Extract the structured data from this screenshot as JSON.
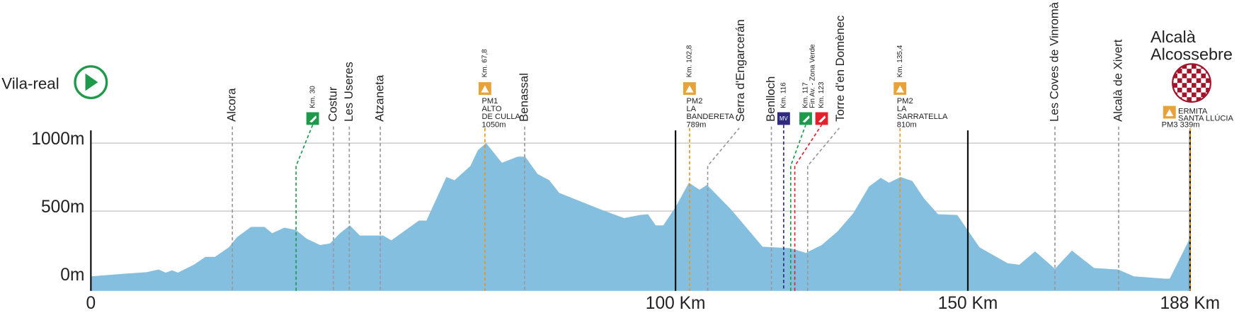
{
  "chart_data": {
    "type": "area",
    "color": "#85bfe0",
    "x": [
      0,
      6,
      9.5,
      11.6,
      12.8,
      13.9,
      14.9,
      17.6,
      19.6,
      21.2,
      23.6,
      25,
      27.4,
      29.7,
      31,
      33.1,
      35.1,
      36.9,
      39.2,
      40.9,
      42.6,
      44.3,
      46,
      50,
      51.4,
      56.1,
      57.4,
      60.8,
      62.2,
      64.9,
      66.2,
      67.6,
      70.3,
      73,
      74.3,
      76.4,
      78.4,
      80.1,
      87.2,
      91.2,
      93.9,
      95.3,
      96.6,
      97.9,
      100,
      102.3,
      104.1,
      105.4,
      109.5,
      114.9,
      119.6,
      122.3,
      125,
      127.7,
      130.4,
      133.1,
      135.1,
      136.5,
      138.5,
      140.5,
      142.5,
      144.9,
      148.2,
      152,
      156.8,
      158.8,
      161.5,
      164.9,
      167.8,
      171.6,
      175.7,
      178.4,
      184.5,
      188
    ],
    "values": [
      20,
      40,
      50,
      70,
      47,
      64,
      47,
      105,
      163,
      163,
      233,
      308,
      384,
      384,
      337,
      378,
      360,
      297,
      250,
      262,
      337,
      395,
      320,
      320,
      285,
      430,
      430,
      750,
      727,
      831,
      948,
      1000,
      855,
      900,
      900,
      773,
      727,
      634,
      512,
      448,
      471,
      477,
      395,
      395,
      529,
      709,
      657,
      692,
      512,
      238,
      227,
      192,
      250,
      349,
      483,
      680,
      744,
      709,
      750,
      721,
      593,
      477,
      471,
      233,
      116,
      105,
      203,
      76,
      209,
      81,
      70,
      20,
      0,
      300
    ],
    "xlim": [
      0,
      188
    ],
    "xticks": [
      {
        "value": 0,
        "label": "0"
      },
      {
        "value": 100,
        "label": "100 Km"
      },
      {
        "value": 150,
        "label": "150 Km"
      },
      {
        "value": 188,
        "label": "188 Km"
      }
    ],
    "ylim": [
      -87,
      1093
    ],
    "yticks": [
      {
        "value": 0,
        "label": "0m"
      },
      {
        "value": 500,
        "label": "500m"
      },
      {
        "value": 1000,
        "label": "1000m"
      }
    ],
    "grid": true,
    "start": "Vila-real",
    "finish": [
      "Alcalà",
      "Alcossebre"
    ],
    "waypoints": [
      {
        "km": 24.2,
        "kind": "place",
        "label": "Alcora"
      },
      {
        "km": 35.1,
        "kind": "sprint",
        "color": "#1e9a4b",
        "km_label": "Km. 30"
      },
      {
        "km": 41.5,
        "kind": "place",
        "label": "Costur"
      },
      {
        "km": 44.2,
        "kind": "place",
        "label": "Les Useres"
      },
      {
        "km": 49.5,
        "kind": "place",
        "label": "Atzaneta"
      },
      {
        "km": 67.4,
        "kind": "climb",
        "km_label": "Km. 67,8",
        "lines": [
          "PM1",
          "ALTO",
          "DE CULLA",
          "1050m"
        ]
      },
      {
        "km": 74.2,
        "kind": "place",
        "label": "Benassal"
      },
      {
        "km": 102.4,
        "kind": "climb",
        "km_label": "Km. 102,8",
        "lines": [
          "PM2",
          "LA",
          "BANDERETA",
          "789m"
        ]
      },
      {
        "km": 105.5,
        "kind": "offset-place",
        "label": "Serra d'Engarcerán"
      },
      {
        "km": 116.4,
        "kind": "place",
        "label": "Benlloch"
      },
      {
        "km": 118.5,
        "kind": "mv",
        "label": "MV",
        "color": "#2e2a7e",
        "km_label": "Km. 116"
      },
      {
        "km": 119.7,
        "kind": "zone",
        "color": "#1e9a4b",
        "km_label": "Km. 117",
        "note": "Fin Av. - Zona Verde"
      },
      {
        "km": 120.4,
        "kind": "zone",
        "color": "#e3202b",
        "km_label": "Km. 123"
      },
      {
        "km": 122.6,
        "kind": "offset-place",
        "label": "Torre d'en Domènec"
      },
      {
        "km": 138.4,
        "kind": "climb",
        "km_label": "Km. 135,4",
        "lines": [
          "PM2",
          "LA",
          "SARRATELLA",
          "810m"
        ]
      },
      {
        "km": 164.9,
        "kind": "place",
        "label": "Les Coves de Vinromà"
      },
      {
        "km": 175.8,
        "kind": "place",
        "label": "Alcalà de Xivert"
      },
      {
        "km": 188,
        "kind": "finish-climb",
        "lines": [
          "ERMITA",
          "SANTA LLÚCIA"
        ],
        "category": "PM3 339m"
      }
    ]
  }
}
